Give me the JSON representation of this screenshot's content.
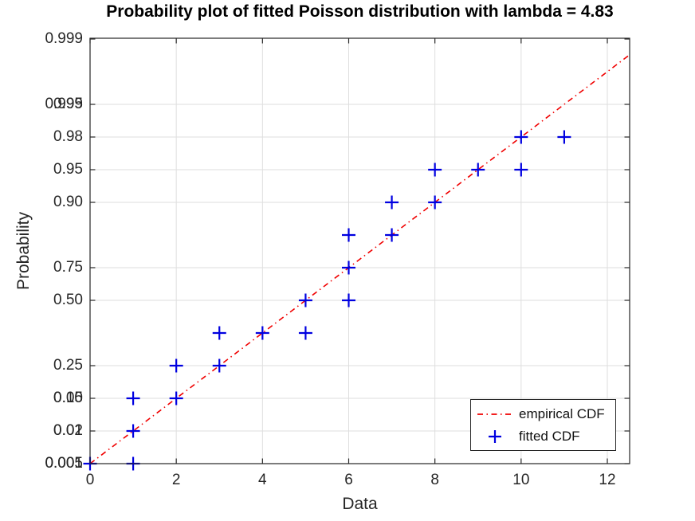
{
  "chart_data": {
    "type": "scatter",
    "title": "Probability plot of fitted Poisson distribution with lambda = 4.83",
    "xlabel": "Data",
    "ylabel": "Probability",
    "lambda": 4.83,
    "grid": true,
    "legend_position": "southeast",
    "xlim": [
      0,
      12.52
    ],
    "x_ticks": [
      0,
      2,
      4,
      6,
      8,
      10,
      12
    ],
    "y_axis": {
      "scale": "nonlinear probability scale (Poisson(4.83) inverse-CDF); each probability tick sits on an integer quantile level, level 0 = bottom axis",
      "levels_range": [
        0,
        13.02
      ],
      "ticks": [
        {
          "level": 0,
          "labels": [
            "0.001",
            "0.005"
          ]
        },
        {
          "level": 1,
          "labels": [
            "0.01",
            "0.02"
          ]
        },
        {
          "level": 2,
          "labels": [
            "0.05",
            "0.10"
          ]
        },
        {
          "level": 3,
          "labels": [
            "0.25"
          ]
        },
        {
          "level": 5,
          "labels": [
            "0.50"
          ]
        },
        {
          "level": 6,
          "labels": [
            "0.75"
          ]
        },
        {
          "level": 8,
          "labels": [
            "0.90"
          ]
        },
        {
          "level": 9,
          "labels": [
            "0.95"
          ]
        },
        {
          "level": 10,
          "labels": [
            "0.98"
          ]
        },
        {
          "level": 11,
          "labels": [
            "0.99",
            "0.995"
          ]
        },
        {
          "level": 13,
          "labels": [
            "0.999"
          ]
        }
      ]
    },
    "series": [
      {
        "name": "empirical CDF",
        "type": "line",
        "dash": "dash-dot",
        "color": "#f00000",
        "line_xlevel": [
          [
            0,
            0
          ],
          [
            12.52,
            12.52
          ]
        ]
      },
      {
        "name": "fitted CDF",
        "type": "scatter",
        "marker": "+",
        "color": "#0000e0",
        "points_xlevel": [
          [
            0,
            0
          ],
          [
            1,
            0
          ],
          [
            1,
            1
          ],
          [
            1,
            2
          ],
          [
            2,
            2
          ],
          [
            2,
            3
          ],
          [
            3,
            3
          ],
          [
            3,
            4
          ],
          [
            4,
            4
          ],
          [
            5,
            4
          ],
          [
            5,
            5
          ],
          [
            6,
            5
          ],
          [
            6,
            6
          ],
          [
            6,
            7
          ],
          [
            7,
            7
          ],
          [
            7,
            8
          ],
          [
            8,
            8
          ],
          [
            8,
            9
          ],
          [
            9,
            9
          ],
          [
            10,
            9
          ],
          [
            10,
            10
          ],
          [
            11,
            10
          ]
        ]
      }
    ],
    "colors": {
      "grid": "#dedede",
      "axis": "#262626",
      "tick_text": "#262626",
      "title_text": "#000000"
    }
  }
}
